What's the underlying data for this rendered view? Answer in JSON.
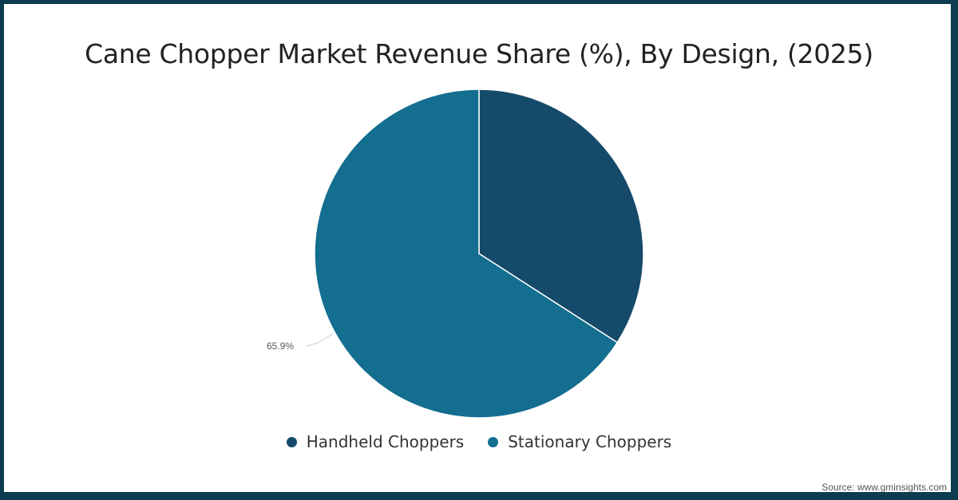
{
  "chart_data": {
    "type": "pie",
    "title": "Cane Chopper Market Revenue Share (%), By Design, (2025)",
    "categories": [
      "Handheld Choppers",
      "Stationary Choppers"
    ],
    "values": [
      34.1,
      65.9
    ],
    "colors": [
      "#154a6a",
      "#136e90"
    ],
    "data_labels": [
      null,
      "65.9%"
    ],
    "legend_position": "bottom",
    "start_angle_deg": 0,
    "direction": "clockwise"
  },
  "title": "Cane Chopper Market Revenue Share (%), By Design, (2025)",
  "legend": [
    {
      "label": "Handheld Choppers",
      "color": "#154a6a"
    },
    {
      "label": "Stationary Choppers",
      "color": "#136e90"
    }
  ],
  "labels": {
    "stationary": "65.9%"
  },
  "source": "Source: www.gminsights.com",
  "colors": {
    "border": "#0d3b4f",
    "background": "#ffffff"
  }
}
